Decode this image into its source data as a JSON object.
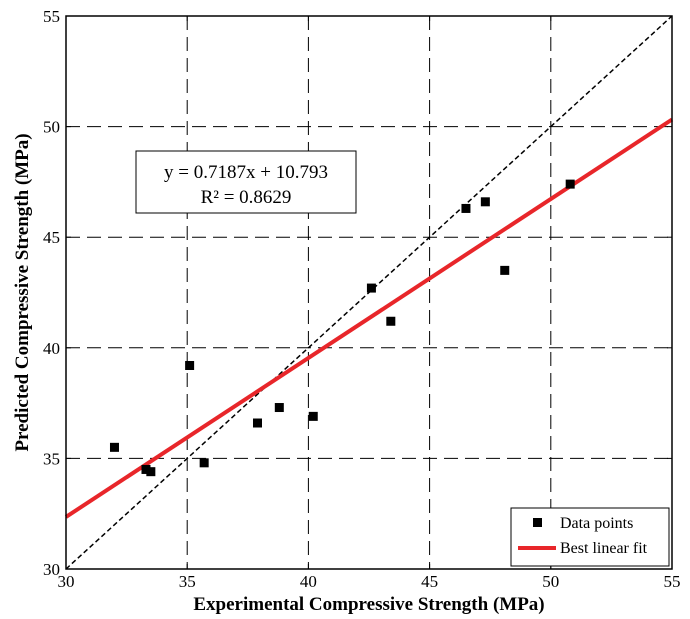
{
  "chart_data": {
    "type": "scatter",
    "title": "",
    "xlabel": "Experimental Compressive Strength (MPa)",
    "ylabel": "Predicted Compressive Strength (MPa)",
    "xlim": [
      30,
      55
    ],
    "ylim": [
      30,
      55
    ],
    "xticks": [
      30,
      35,
      40,
      45,
      50,
      55
    ],
    "yticks": [
      30,
      35,
      40,
      45,
      50,
      55
    ],
    "grid": "on (dashed)",
    "legend_position": "bottom-right",
    "series": [
      {
        "name": "Data points",
        "marker": "square",
        "color": "#000000",
        "points": [
          {
            "x": 32.0,
            "y": 35.5
          },
          {
            "x": 33.3,
            "y": 34.5
          },
          {
            "x": 33.5,
            "y": 34.4
          },
          {
            "x": 35.1,
            "y": 39.2
          },
          {
            "x": 35.7,
            "y": 34.8
          },
          {
            "x": 37.9,
            "y": 36.6
          },
          {
            "x": 38.8,
            "y": 37.3
          },
          {
            "x": 40.2,
            "y": 36.9
          },
          {
            "x": 42.6,
            "y": 42.7
          },
          {
            "x": 43.4,
            "y": 41.2
          },
          {
            "x": 46.5,
            "y": 46.3
          },
          {
            "x": 47.3,
            "y": 46.6
          },
          {
            "x": 48.1,
            "y": 43.5
          },
          {
            "x": 50.8,
            "y": 47.4
          }
        ]
      },
      {
        "name": "Best linear fit",
        "type": "line",
        "color": "#e8262a",
        "slope": 0.7187,
        "intercept": 10.793,
        "x_range": [
          30,
          55
        ]
      },
      {
        "type": "line",
        "style": "dashed",
        "color": "#000000",
        "slope": 1,
        "intercept": 0,
        "x_range": [
          30,
          55
        ]
      }
    ],
    "annotation": {
      "line1": "y = 0.7187x + 10.793",
      "line2": "R² = 0.8629"
    }
  }
}
